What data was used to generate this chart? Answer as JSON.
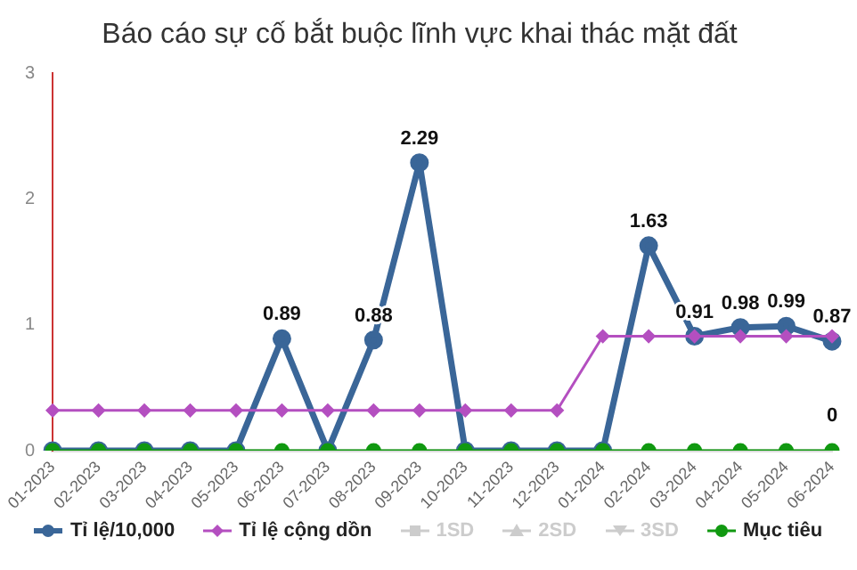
{
  "chart_data": {
    "type": "line",
    "title": "Báo cáo sự cố bắt buộc lĩnh vực khai thác mặt đất",
    "categories": [
      "01-2023",
      "02-2023",
      "03-2023",
      "04-2023",
      "05-2023",
      "06-2023",
      "07-2023",
      "08-2023",
      "09-2023",
      "10-2023",
      "11-2023",
      "12-2023",
      "01-2024",
      "02-2024",
      "03-2024",
      "04-2024",
      "05-2024",
      "06-2024"
    ],
    "series": [
      {
        "name": "Tỉ lệ/10,000",
        "color": "#3a6698",
        "marker": "circle",
        "values": [
          0,
          0,
          0,
          0,
          0,
          0.89,
          0,
          0.88,
          2.29,
          0,
          0,
          0,
          0,
          1.63,
          0.91,
          0.98,
          0.99,
          0.87
        ],
        "value_labels": [
          null,
          null,
          null,
          null,
          null,
          "0.89",
          null,
          "0.88",
          "2.29",
          null,
          null,
          null,
          null,
          "1.63",
          "0.91",
          "0.98",
          "0.99",
          "0.87"
        ]
      },
      {
        "name": "Tỉ lệ cộng dồn",
        "color": "#b44fc0",
        "marker": "diamond",
        "values": [
          0.32,
          0.32,
          0.32,
          0.32,
          0.32,
          0.32,
          0.32,
          0.32,
          0.32,
          0.32,
          0.32,
          0.32,
          0.91,
          0.91,
          0.91,
          0.91,
          0.91,
          0.91
        ]
      },
      {
        "name": "1SD",
        "color": "#cccccc",
        "marker": "square",
        "values": [
          null,
          null,
          null,
          null,
          null,
          null,
          null,
          null,
          null,
          null,
          null,
          null,
          null,
          null,
          null,
          null,
          null,
          null
        ]
      },
      {
        "name": "2SD",
        "color": "#cccccc",
        "marker": "triangle",
        "values": [
          null,
          null,
          null,
          null,
          null,
          null,
          null,
          null,
          null,
          null,
          null,
          null,
          null,
          null,
          null,
          null,
          null,
          null
        ]
      },
      {
        "name": "3SD",
        "color": "#cccccc",
        "marker": "cross",
        "values": [
          null,
          null,
          null,
          null,
          null,
          null,
          null,
          null,
          null,
          null,
          null,
          null,
          null,
          null,
          null,
          null,
          null,
          null
        ]
      },
      {
        "name": "Mục tiêu",
        "color": "#119911",
        "marker": "circle",
        "values": [
          0,
          0,
          0,
          0,
          0,
          0,
          0,
          0,
          0,
          0,
          0,
          0,
          0,
          0,
          0,
          0,
          0,
          0
        ],
        "value_labels": [
          null,
          null,
          null,
          null,
          null,
          null,
          null,
          null,
          null,
          null,
          null,
          null,
          null,
          null,
          null,
          null,
          null,
          "0"
        ]
      }
    ],
    "ylim": [
      0,
      3
    ],
    "yticks": [
      0,
      1,
      2,
      3
    ],
    "grid": false,
    "legend": "bottom",
    "line_style": "solid"
  }
}
